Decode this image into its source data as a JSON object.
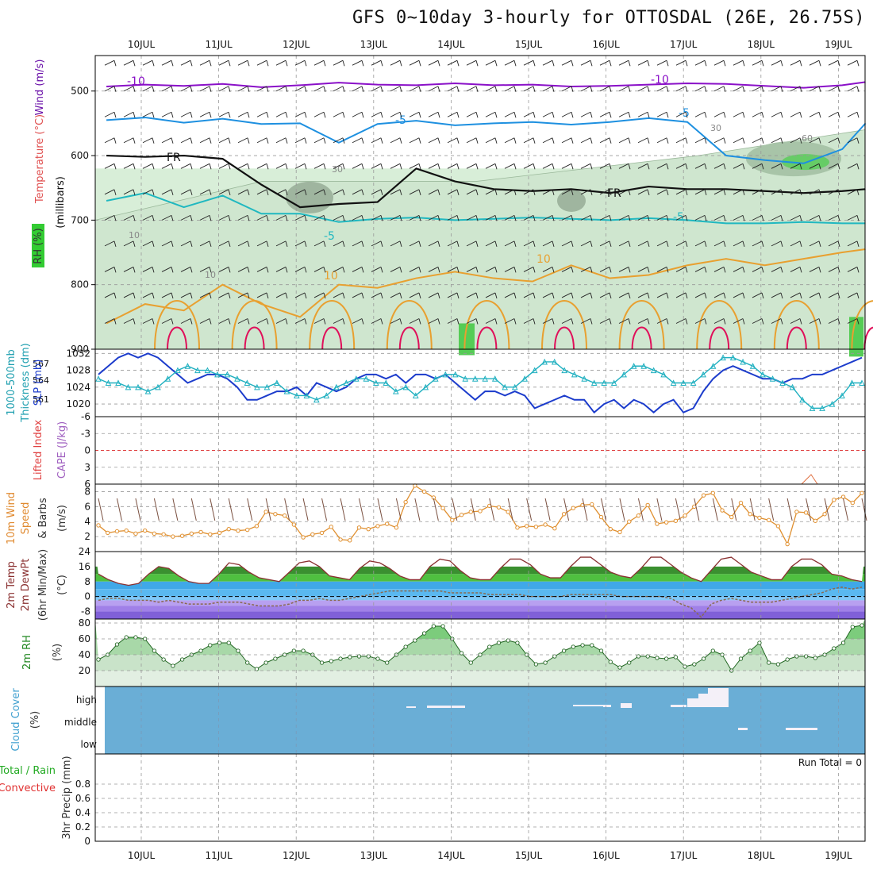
{
  "title": "GFS 0~10day 3-hourly for OTTOSDAL (26E, 26.75S)",
  "dates": [
    "10JUL",
    "11JUL",
    "12JUL",
    "13JUL",
    "14JUL",
    "15JUL",
    "16JUL",
    "17JUL",
    "18JUL",
    "19JUL"
  ],
  "colors": {
    "wind": "#8000c0",
    "t_minus10": "#8a10c8",
    "t_minus5": "#1e90e0",
    "t_5": "#20b8c0",
    "t_10": "#e8a030",
    "fr": "#111111",
    "rh": "#d8eed8",
    "slp": "#1c3ccc",
    "thk": "#20b0c0",
    "cape_zero": "#e04040",
    "wind10": "#e09030",
    "cloud": "#6aaed6",
    "temp_green": "#2ec840",
    "temp_blue": "#3080e0"
  },
  "chart_data": [
    {
      "type": "heatmap",
      "panel": "upper-air",
      "ylabel": "(millibars)",
      "legend": [
        "RH (%)",
        "Temperature (°C)",
        "Wind (m/s)"
      ],
      "y_ticks": [
        "500",
        "600",
        "700",
        "800",
        "900"
      ],
      "ylim": [
        445,
        900
      ],
      "contour_labels": [
        "-10",
        "-10",
        "-5",
        "-5",
        "FR",
        "FR",
        "-5",
        "-5",
        "10",
        "10",
        "30",
        "30",
        "60",
        "10",
        "10"
      ],
      "series": [
        {
          "name": "-10",
          "x": [
            0,
            0.5,
            1,
            1.5,
            2,
            2.5,
            3,
            3.5,
            4,
            4.5,
            5,
            5.5,
            6,
            6.5,
            7,
            7.5,
            8,
            8.5,
            9,
            9.5,
            9.8
          ],
          "values": [
            493,
            490,
            492,
            489,
            494,
            491,
            487,
            490,
            491,
            488,
            491,
            490,
            493,
            492,
            490,
            488,
            489,
            492,
            495,
            491,
            486
          ]
        },
        {
          "name": "-5",
          "x": [
            0,
            0.5,
            1,
            1.5,
            2,
            2.5,
            3,
            3.5,
            4,
            4.5,
            5,
            5.5,
            6,
            6.5,
            7,
            7.5,
            8,
            8.5,
            9,
            9.5,
            9.8
          ],
          "values": [
            545,
            541,
            549,
            543,
            551,
            550,
            580,
            551,
            546,
            553,
            550,
            548,
            552,
            548,
            542,
            548,
            600,
            607,
            612,
            590,
            550
          ]
        },
        {
          "name": "FR",
          "x": [
            0,
            0.5,
            1,
            1.5,
            2,
            2.5,
            3,
            3.5,
            4,
            4.5,
            5,
            5.5,
            6,
            6.5,
            7,
            7.5,
            8,
            8.5,
            9,
            9.5,
            9.8
          ],
          "values": [
            600,
            602,
            600,
            605,
            645,
            680,
            675,
            672,
            620,
            640,
            652,
            655,
            652,
            658,
            648,
            652,
            652,
            655,
            658,
            655,
            652
          ]
        },
        {
          "name": "5",
          "x": [
            0,
            0.5,
            1,
            1.5,
            2,
            2.5,
            3,
            3.5,
            4,
            4.5,
            5,
            5.5,
            6,
            6.5,
            7,
            7.5,
            8,
            8.5,
            9,
            9.5,
            9.8
          ],
          "values": [
            670,
            658,
            680,
            662,
            690,
            690,
            703,
            698,
            696,
            700,
            698,
            696,
            698,
            700,
            697,
            700,
            705,
            705,
            703,
            705,
            705
          ]
        },
        {
          "name": "10",
          "x": [
            0,
            0.5,
            1,
            1.5,
            2,
            2.5,
            3,
            3.5,
            4,
            4.5,
            5,
            5.5,
            6,
            6.5,
            7,
            7.5,
            8,
            8.5,
            9,
            9.5,
            9.8
          ],
          "values": [
            860,
            830,
            840,
            800,
            830,
            850,
            800,
            805,
            790,
            780,
            790,
            795,
            770,
            790,
            785,
            770,
            760,
            770,
            760,
            750,
            745
          ]
        }
      ]
    },
    {
      "type": "line",
      "panel": "thickness-slp",
      "ylabel_left": "1000-500mb Thickness (dm)",
      "ylabel_right": "SLP (mb)",
      "left_ticks": [
        "567",
        "564",
        "561"
      ],
      "right_ticks": [
        "1032",
        "1028",
        "1024",
        "1020"
      ],
      "ylim": [
        1017,
        1033
      ],
      "series": [
        {
          "name": "SLP",
          "values": [
            1027,
            1029,
            1031,
            1032,
            1031,
            1032,
            1031,
            1029,
            1027,
            1025,
            1026,
            1027,
            1027,
            1026,
            1024,
            1021,
            1021,
            1022,
            1023,
            1023,
            1024,
            1022,
            1025,
            1024,
            1023,
            1024,
            1026,
            1027,
            1027,
            1026,
            1027,
            1025,
            1027,
            1027,
            1026,
            1027,
            1025,
            1023,
            1021,
            1023,
            1023,
            1022,
            1023,
            1022,
            1019,
            1020,
            1021,
            1022,
            1021,
            1021,
            1018,
            1020,
            1021,
            1019,
            1021,
            1020,
            1018,
            1020,
            1021,
            1018,
            1019,
            1023,
            1026,
            1028,
            1029,
            1028,
            1027,
            1026,
            1026,
            1025,
            1026,
            1026,
            1027,
            1027,
            1028,
            1029,
            1030,
            1031
          ]
        },
        {
          "name": "1000-500mb Thickness",
          "values": [
            1026,
            1025,
            1025,
            1024,
            1024,
            1023,
            1024,
            1026,
            1028,
            1029,
            1028,
            1028,
            1027,
            1027,
            1026,
            1025,
            1024,
            1024,
            1025,
            1023,
            1022,
            1022,
            1021,
            1022,
            1024,
            1025,
            1026,
            1026,
            1025,
            1025,
            1023,
            1024,
            1022,
            1024,
            1026,
            1027,
            1027,
            1026,
            1026,
            1026,
            1026,
            1024,
            1024,
            1026,
            1028,
            1030,
            1030,
            1028,
            1027,
            1026,
            1025,
            1025,
            1025,
            1027,
            1029,
            1029,
            1028,
            1027,
            1025,
            1025,
            1025,
            1027,
            1029,
            1031,
            1031,
            1030,
            1029,
            1027,
            1026,
            1025,
            1024,
            1021,
            1019,
            1019,
            1020,
            1022,
            1025,
            1025
          ]
        }
      ]
    },
    {
      "type": "line",
      "panel": "cape-li",
      "ylabel_left": "Lifted Index",
      "ylabel_right": "CAPE (J/kg)",
      "y_ticks": [
        "-6",
        "-3",
        "0",
        "3",
        "6"
      ],
      "ylim": [
        -6,
        6
      ],
      "series": []
    },
    {
      "type": "line",
      "panel": "wind10",
      "ylabel": "10m Wind Speed & Barbs (m/s)",
      "y_ticks": [
        "8",
        "6",
        "4",
        "2"
      ],
      "ylim": [
        0,
        9
      ],
      "series": [
        {
          "name": "10m Wind Speed",
          "values": [
            3.5,
            2.5,
            2.7,
            2.8,
            2.4,
            2.8,
            2.4,
            2.3,
            2.0,
            2.1,
            2.4,
            2.6,
            2.3,
            2.5,
            3.0,
            2.8,
            2.9,
            3.4,
            5.3,
            5.0,
            4.8,
            3.6,
            1.9,
            2.3,
            2.5,
            3.3,
            1.6,
            1.5,
            3.2,
            3.0,
            3.4,
            3.7,
            3.2,
            6.6,
            8.8,
            8.0,
            7.2,
            5.8,
            4.2,
            4.9,
            5.3,
            5.4,
            6.1,
            5.9,
            5.3,
            3.2,
            3.4,
            3.3,
            3.6,
            3.1,
            5.0,
            5.8,
            6.2,
            6.3,
            4.6,
            3.0,
            2.6,
            4.0,
            4.8,
            6.2,
            3.7,
            3.9,
            4.1,
            4.8,
            6.0,
            7.5,
            7.8,
            5.5,
            4.6,
            6.5,
            5.0,
            4.5,
            4.2,
            3.4,
            1.0,
            5.3,
            5.2,
            4.1,
            5.0,
            6.9,
            7.3,
            6.5,
            7.8
          ]
        }
      ]
    },
    {
      "type": "area",
      "panel": "temperature",
      "ylabel": "2m Temp 2m DewPt (6hr Min/Max) (°C)",
      "y_ticks": [
        "24",
        "16",
        "8",
        "0",
        "-8"
      ],
      "ylim": [
        -12,
        24
      ],
      "series": [
        {
          "name": "2m Temp",
          "values": [
            12,
            9,
            7,
            6,
            7,
            12,
            16,
            15,
            11,
            8,
            7,
            7,
            12,
            18,
            17,
            13,
            10,
            9,
            8,
            13,
            18,
            19,
            16,
            11,
            10,
            9,
            15,
            19,
            18,
            15,
            11,
            9,
            9,
            16,
            20,
            19,
            14,
            10,
            9,
            9,
            15,
            20,
            20,
            17,
            12,
            10,
            10,
            16,
            21,
            21,
            17,
            13,
            11,
            10,
            15,
            21,
            21,
            17,
            13,
            10,
            8,
            14,
            20,
            21,
            17,
            13,
            11,
            9,
            9,
            16,
            20,
            20,
            17,
            12,
            11,
            9,
            8
          ]
        },
        {
          "name": "2m DewPt",
          "values": [
            -2,
            -1,
            -1,
            -2,
            -2,
            -2,
            -3,
            -2,
            -3,
            -4,
            -4,
            -4,
            -3,
            -3,
            -3,
            -4,
            -5,
            -5,
            -5,
            -4,
            -2,
            -2,
            -1,
            -2,
            -2,
            -1,
            0,
            1,
            2,
            3,
            3,
            3,
            3,
            3,
            3,
            2,
            2,
            2,
            2,
            1,
            1,
            1,
            1,
            0,
            0,
            0,
            0,
            1,
            1,
            1,
            1,
            1,
            0,
            0,
            0,
            0,
            0,
            -1,
            -4,
            -6,
            -11,
            -4,
            -2,
            -1,
            -2,
            -3,
            -3,
            -3,
            -2,
            -1,
            0,
            1,
            2,
            4,
            5,
            4,
            5
          ]
        }
      ]
    },
    {
      "type": "area",
      "panel": "rh",
      "ylabel": "2m RH (%)",
      "y_ticks": [
        "80",
        "60",
        "40",
        "20"
      ],
      "ylim": [
        0,
        85
      ],
      "series": [
        {
          "name": "2m RH",
          "values": [
            34,
            40,
            53,
            62,
            62,
            60,
            45,
            34,
            26,
            34,
            40,
            45,
            52,
            55,
            55,
            45,
            30,
            22,
            30,
            35,
            40,
            45,
            45,
            40,
            30,
            32,
            35,
            37,
            38,
            38,
            35,
            30,
            40,
            50,
            58,
            67,
            76,
            76,
            60,
            42,
            30,
            40,
            50,
            55,
            58,
            55,
            40,
            28,
            30,
            38,
            45,
            50,
            52,
            52,
            45,
            31,
            24,
            30,
            38,
            38,
            36,
            35,
            37,
            25,
            28,
            35,
            45,
            40,
            20,
            35,
            45,
            55,
            30,
            28,
            34,
            38,
            38,
            36,
            40,
            48,
            55,
            75,
            77
          ]
        }
      ]
    },
    {
      "type": "bar",
      "panel": "cloud",
      "ylabel": "Cloud Cover (%)",
      "levels": [
        "high",
        "middle",
        "low"
      ]
    },
    {
      "type": "bar",
      "panel": "precip",
      "ylabel": "3hr Precip (mm)",
      "legend": [
        "Total / Rain",
        "Convective"
      ],
      "y_ticks": [
        "0.8",
        "0.6",
        "0.4",
        "0.2",
        "0"
      ],
      "ylim": [
        0,
        1
      ],
      "run_total": "Run Total = 0",
      "values": []
    }
  ],
  "labels": {
    "rh_pct": "RH (%)",
    "temperature_c": "Temperature (°C)",
    "wind_ms": "Wind (m/s)",
    "millibars": "(millibars)",
    "thickness": "1000-500mb",
    "thickness2": "Thickness (dm)",
    "slp": "SLP (mb)",
    "li": "Lifted Index",
    "cape": "CAPE (J/kg)",
    "wind10_1": "10m Wind",
    "wind10_2": "Speed",
    "wind10_3": "& Barbs",
    "wind10_4": "(m/s)",
    "temp_1": "2m Temp",
    "temp_2": "2m DewPt",
    "temp_3": "(6hr Min/Max)",
    "temp_4": "(°C)",
    "rh_1": "2m RH",
    "rh_2": "(%)",
    "cloud_1": "Cloud Cover",
    "cloud_2": "(%)",
    "high": "high",
    "middle": "middle",
    "low": "low",
    "precip_1": "Total / Rain",
    "precip_2": "Convective",
    "precip_3": "3hr Precip (mm)",
    "run_total": "Run Total = 0"
  }
}
